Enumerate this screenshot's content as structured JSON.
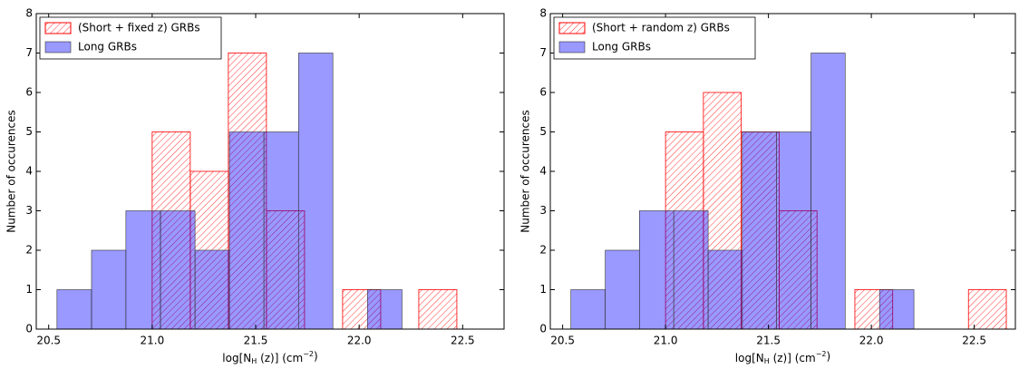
{
  "chart_data": [
    {
      "type": "histogram",
      "y_label": "Number of occurences",
      "x_label": [
        "log[N",
        "H",
        " (z)] (cm",
        "−2",
        ")"
      ],
      "xlim": [
        20.44,
        22.7
      ],
      "ylim": [
        0,
        8
      ],
      "xticks": [
        20.5,
        21.0,
        21.5,
        22.0,
        22.5
      ],
      "yticks": [
        0,
        1,
        2,
        3,
        4,
        5,
        6,
        7,
        8
      ],
      "legend": "upper left",
      "series": [
        {
          "name": "(Short + fixed z) GRBs",
          "color": "#ff0000",
          "style": "hatch",
          "bins": [
            21.0,
            21.184,
            21.368,
            21.552,
            21.736,
            21.92,
            22.104,
            22.288,
            22.472
          ],
          "values": [
            5,
            4,
            7,
            3,
            0,
            1,
            0,
            1
          ]
        },
        {
          "name": "Long GRBs",
          "color": "#0000ff",
          "style": "fill",
          "bins": [
            20.54,
            20.707,
            20.873,
            21.04,
            21.207,
            21.373,
            21.54,
            21.707,
            21.873,
            22.04,
            22.207
          ],
          "values": [
            1,
            2,
            3,
            3,
            2,
            5,
            5,
            7,
            0,
            1
          ]
        }
      ]
    },
    {
      "type": "histogram",
      "y_label": "Number of occurences",
      "x_label": [
        "log[N",
        "H",
        " (z)] (cm",
        "−2",
        ")"
      ],
      "xlim": [
        20.44,
        22.7
      ],
      "ylim": [
        0,
        8
      ],
      "xticks": [
        20.5,
        21.0,
        21.5,
        22.0,
        22.5
      ],
      "yticks": [
        0,
        1,
        2,
        3,
        4,
        5,
        6,
        7,
        8
      ],
      "legend": "upper left",
      "series": [
        {
          "name": "(Short + random z) GRBs",
          "color": "#ff0000",
          "style": "hatch",
          "bins": [
            21.0,
            21.184,
            21.368,
            21.552,
            21.736,
            21.92,
            22.104,
            22.288,
            22.472,
            22.656
          ],
          "values": [
            5,
            6,
            5,
            3,
            0,
            1,
            0,
            0,
            1
          ]
        },
        {
          "name": "Long GRBs",
          "color": "#0000ff",
          "style": "fill",
          "bins": [
            20.54,
            20.707,
            20.873,
            21.04,
            21.207,
            21.373,
            21.54,
            21.707,
            21.873,
            22.04,
            22.207
          ],
          "values": [
            1,
            2,
            3,
            3,
            2,
            5,
            5,
            7,
            0,
            1
          ]
        }
      ]
    }
  ]
}
